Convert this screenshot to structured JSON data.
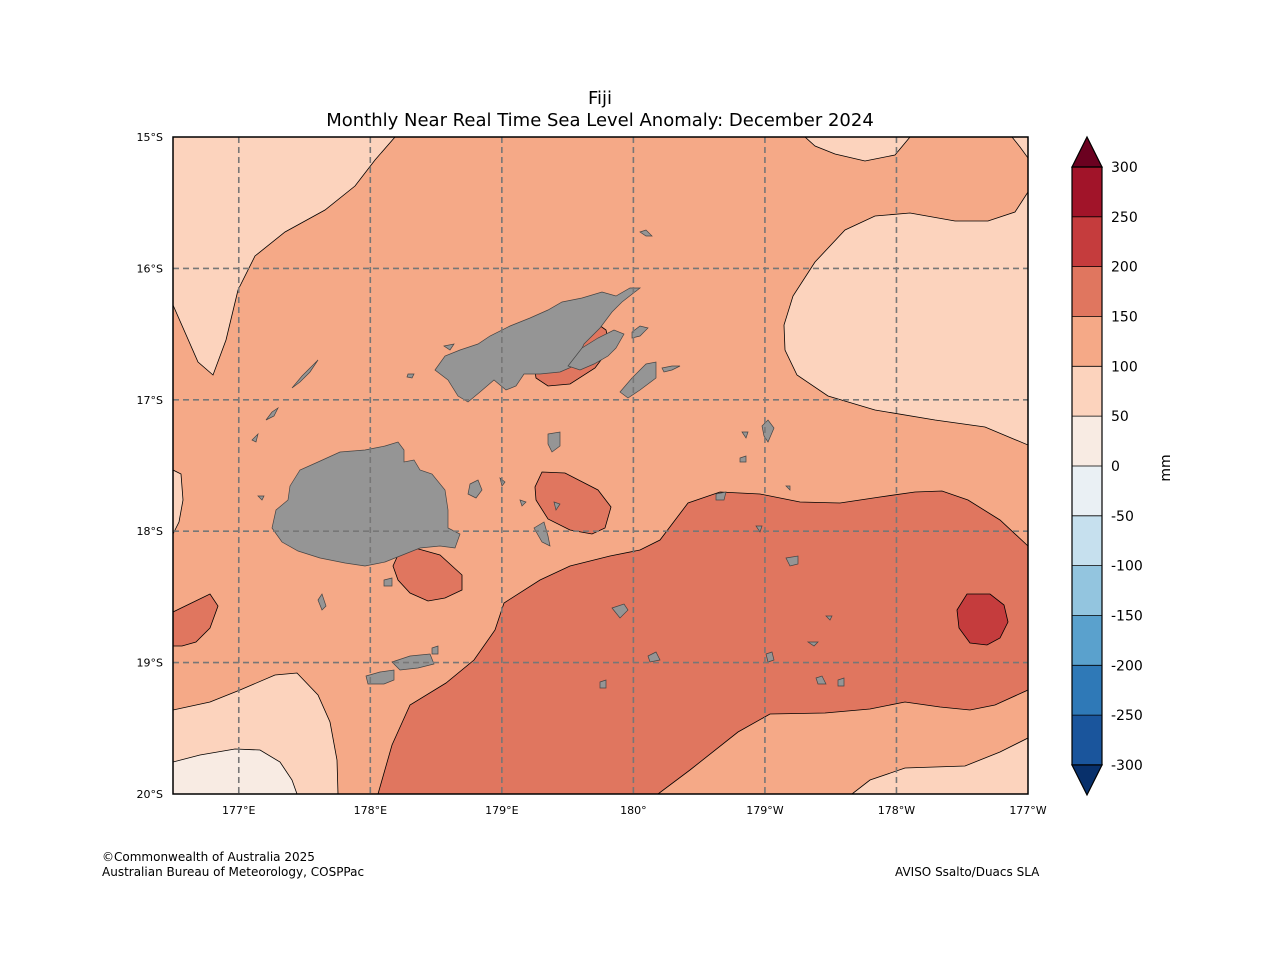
{
  "title": "Fiji",
  "subtitle": "Monthly Near Real Time Sea Level Anomaly: December 2024",
  "map": {
    "lat_ticks": [
      "15°S",
      "16°S",
      "17°S",
      "18°S",
      "19°S",
      "20°S"
    ],
    "lon_ticks": [
      "177°E",
      "178°E",
      "179°E",
      "180°",
      "179°W",
      "178°W",
      "177°W"
    ],
    "lon_range": [
      176.5,
      183.0
    ],
    "lat_range": [
      -20,
      -15
    ],
    "gridlines": true,
    "land_color": "#959595"
  },
  "colorbar": {
    "unit": "mm",
    "levels": [
      -300,
      -250,
      -200,
      -150,
      -100,
      -50,
      0,
      50,
      100,
      150,
      200,
      250,
      300
    ],
    "labels": [
      "300",
      "250",
      "200",
      "150",
      "100",
      "50",
      "0",
      "-50",
      "-100",
      "-150",
      "-200",
      "-250",
      "-300"
    ],
    "colors": [
      "#a11429",
      "#c53c3d",
      "#e0765f",
      "#f5a987",
      "#fcd3bd",
      "#f8ebe3",
      "#eaf0f4",
      "#c6e0ee",
      "#93c5df",
      "#5aa1cd",
      "#2f79b7",
      "#1a559c"
    ],
    "over_color": "#6b0120",
    "under_color": "#08306b"
  },
  "credits": {
    "line1": "©Commonwealth of Australia 2025",
    "line2": "Australian Bureau of Meteorology, COSPPac",
    "source": "AVISO Ssalto/Duacs SLA"
  }
}
